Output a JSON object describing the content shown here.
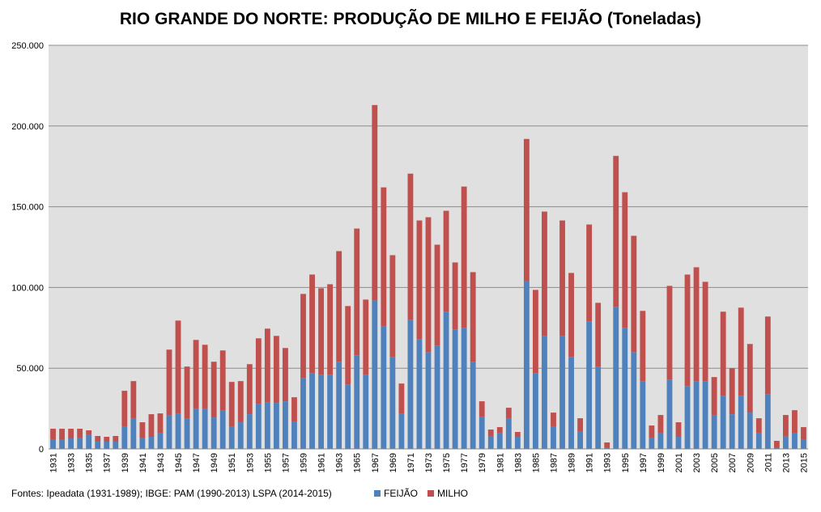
{
  "chart_data": {
    "type": "bar",
    "stacked": true,
    "title": "RIO GRANDE DO NORTE: PRODUÇÃO DE MILHO E FEIJÃO (Toneladas)",
    "xlabel": "",
    "ylabel": "",
    "ylim": [
      0,
      250000
    ],
    "yticks": [
      0,
      50000,
      100000,
      150000,
      200000,
      250000
    ],
    "ytick_labels": [
      "0",
      "50.000",
      "100.000",
      "150.000",
      "200.000",
      "250.000"
    ],
    "grid": true,
    "legend_position": "bottom",
    "categories": [
      "1931",
      "1932",
      "1933",
      "1934",
      "1935",
      "1936",
      "1937",
      "1938",
      "1939",
      "1940",
      "1941",
      "1942",
      "1943",
      "1944",
      "1945",
      "1946",
      "1947",
      "1948",
      "1949",
      "1950",
      "1951",
      "1952",
      "1953",
      "1954",
      "1955",
      "1956",
      "1957",
      "1958",
      "1959",
      "1960",
      "1961",
      "1962",
      "1963",
      "1964",
      "1965",
      "1966",
      "1967",
      "1968",
      "1969",
      "1970",
      "1971",
      "1972",
      "1973",
      "1974",
      "1975",
      "1976",
      "1977",
      "1978",
      "1979",
      "1980",
      "1981",
      "1982",
      "1983",
      "1984",
      "1985",
      "1986",
      "1987",
      "1988",
      "1989",
      "1990",
      "1991",
      "1992",
      "1993",
      "1994",
      "1995",
      "1996",
      "1997",
      "1998",
      "1999",
      "2000",
      "2001",
      "2002",
      "2003",
      "2004",
      "2005",
      "2006",
      "2007",
      "2008",
      "2009",
      "2010",
      "2011",
      "2012",
      "2013",
      "2014",
      "2015"
    ],
    "xtick_labels": [
      "1931",
      "1933",
      "1935",
      "1937",
      "1939",
      "1941",
      "1943",
      "1945",
      "1947",
      "1949",
      "1951",
      "1953",
      "1955",
      "1957",
      "1959",
      "1961",
      "1963",
      "1965",
      "1967",
      "1969",
      "1971",
      "1973",
      "1975",
      "1977",
      "1979",
      "1981",
      "1983",
      "1985",
      "1987",
      "1989",
      "1991",
      "1993",
      "1995",
      "1997",
      "1999",
      "2001",
      "2003",
      "2005",
      "2007",
      "2009",
      "2011",
      "2013",
      "2015"
    ],
    "series": [
      {
        "name": "FEIJÃO",
        "color": "#4f81bd",
        "values": [
          6000,
          6000,
          6500,
          7000,
          9000,
          5000,
          4500,
          4500,
          14000,
          19000,
          7000,
          7500,
          10000,
          21000,
          22000,
          19000,
          25000,
          25000,
          19500,
          24000,
          14000,
          16500,
          21500,
          28000,
          29000,
          28500,
          29500,
          17000,
          44000,
          47000,
          46000,
          46000,
          54000,
          40000,
          58000,
          46000,
          92000,
          76000,
          57000,
          22000,
          80000,
          68000,
          60000,
          64000,
          85000,
          74000,
          75000,
          54000,
          20000,
          8000,
          10000,
          19000,
          7500,
          104000,
          47000,
          70000,
          14000,
          70000,
          57000,
          11000,
          79000,
          51000,
          1000,
          88000,
          75000,
          60000,
          42000,
          7000,
          10000,
          43000,
          7500,
          39000,
          42000,
          42000,
          21000,
          33000,
          21500,
          33000,
          22500,
          10000,
          34000,
          1000,
          8000,
          10000,
          6000
        ]
      },
      {
        "name": "MILHO",
        "color": "#c0504d",
        "values": [
          6500,
          6500,
          6000,
          5500,
          2500,
          3000,
          3000,
          3500,
          22000,
          23000,
          9500,
          14000,
          12000,
          40500,
          57500,
          32000,
          42500,
          39500,
          34500,
          37000,
          27500,
          25500,
          31000,
          40500,
          45500,
          41500,
          33000,
          15000,
          52000,
          61000,
          53500,
          56000,
          68500,
          48500,
          78500,
          46500,
          121000,
          86000,
          63000,
          18500,
          90500,
          73500,
          83500,
          62500,
          62500,
          41500,
          87500,
          55500,
          9500,
          4000,
          3500,
          6500,
          3000,
          88000,
          51500,
          77000,
          8500,
          71500,
          52000,
          8000,
          60000,
          39500,
          3000,
          93500,
          84000,
          72000,
          43500,
          7500,
          11000,
          58000,
          9000,
          69000,
          70500,
          61500,
          23500,
          52000,
          28500,
          54500,
          42500,
          9000,
          48000,
          4000,
          13000,
          14000,
          7500
        ]
      }
    ]
  },
  "source_note": "Fontes: Ipeadata (1931-1989); IBGE: PAM (1990-2013)  LSPA (2014-2015)",
  "legend": {
    "feijao_label": "FEIJÃO",
    "milho_label": "MILHO",
    "feijao_color": "#4f81bd",
    "milho_color": "#c0504d"
  }
}
